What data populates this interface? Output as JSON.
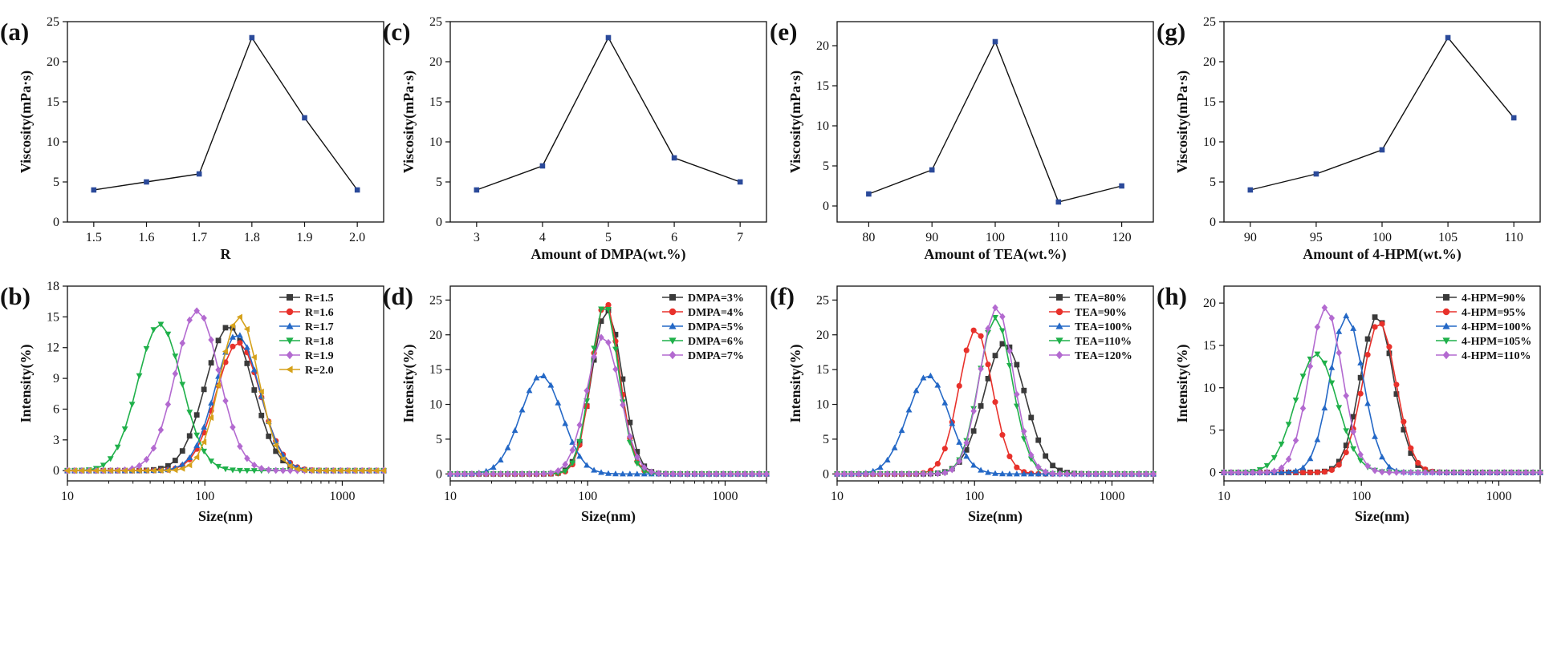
{
  "chart_data": [
    {
      "id": "a",
      "panel_label": "(a)",
      "type": "line",
      "xscale": "linear",
      "title": "",
      "xlabel": "R",
      "ylabel": "Viscosity(mPa·s)",
      "xlim": [
        1.45,
        2.05
      ],
      "ylim": [
        0,
        25
      ],
      "xticks": [
        1.5,
        1.6,
        1.7,
        1.8,
        1.9,
        2.0
      ],
      "xtick_labels": [
        "1.5",
        "1.6",
        "1.7",
        "1.8",
        "1.9",
        "2.0"
      ],
      "yticks": [
        0,
        5,
        10,
        15,
        20,
        25
      ],
      "ytick_labels": [
        "0",
        "5",
        "10",
        "15",
        "20",
        "25"
      ],
      "legend_position": "none",
      "series": [
        {
          "name": "Viscosity",
          "color": "#2b4a9a",
          "marker": "square",
          "x": [
            1.5,
            1.6,
            1.7,
            1.8,
            1.9,
            2.0
          ],
          "y": [
            4,
            5,
            6,
            23,
            13,
            4
          ]
        }
      ]
    },
    {
      "id": "c",
      "panel_label": "(c)",
      "type": "line",
      "xscale": "linear",
      "title": "",
      "xlabel": "Amount of DMPA(wt.%)",
      "ylabel": "Viscosity(mPa·s)",
      "xlim": [
        2.6,
        7.4
      ],
      "ylim": [
        0,
        25
      ],
      "xticks": [
        3,
        4,
        5,
        6,
        7
      ],
      "xtick_labels": [
        "3",
        "4",
        "5",
        "6",
        "7"
      ],
      "yticks": [
        0,
        5,
        10,
        15,
        20,
        25
      ],
      "ytick_labels": [
        "0",
        "5",
        "10",
        "15",
        "20",
        "25"
      ],
      "legend_position": "none",
      "series": [
        {
          "name": "Viscosity",
          "color": "#2b4a9a",
          "marker": "square",
          "x": [
            3,
            4,
            5,
            6,
            7
          ],
          "y": [
            4,
            7,
            23,
            8,
            5
          ]
        }
      ]
    },
    {
      "id": "e",
      "panel_label": "(e)",
      "type": "line",
      "xscale": "linear",
      "title": "",
      "xlabel": "Amount of TEA(wt.%)",
      "ylabel": "Viscosity(mPa·s)",
      "xlim": [
        75,
        125
      ],
      "ylim": [
        -2,
        23
      ],
      "xticks": [
        80,
        90,
        100,
        110,
        120
      ],
      "xtick_labels": [
        "80",
        "90",
        "100",
        "110",
        "120"
      ],
      "yticks": [
        0,
        5,
        10,
        15,
        20
      ],
      "ytick_labels": [
        "0",
        "5",
        "10",
        "15",
        "20"
      ],
      "legend_position": "none",
      "series": [
        {
          "name": "Viscosity",
          "color": "#2b4a9a",
          "marker": "square",
          "x": [
            80,
            90,
            100,
            110,
            120
          ],
          "y": [
            1.5,
            4.5,
            20.5,
            0.5,
            2.5
          ]
        }
      ]
    },
    {
      "id": "g",
      "panel_label": "(g)",
      "type": "line",
      "xscale": "linear",
      "title": "",
      "xlabel": "Amount of 4-HPM(wt.%)",
      "ylabel": "Viscosity(mPa·s)",
      "xlim": [
        88,
        112
      ],
      "ylim": [
        0,
        25
      ],
      "xticks": [
        90,
        95,
        100,
        105,
        110
      ],
      "xtick_labels": [
        "90",
        "95",
        "100",
        "105",
        "110"
      ],
      "yticks": [
        0,
        5,
        10,
        15,
        20,
        25
      ],
      "ytick_labels": [
        "0",
        "5",
        "10",
        "15",
        "20",
        "25"
      ],
      "legend_position": "none",
      "series": [
        {
          "name": "Viscosity",
          "color": "#2b4a9a",
          "marker": "square",
          "x": [
            90,
            95,
            100,
            105,
            110
          ],
          "y": [
            4,
            6,
            9,
            23,
            13
          ]
        }
      ]
    },
    {
      "id": "b",
      "panel_label": "(b)",
      "type": "line",
      "xscale": "log",
      "title": "",
      "xlabel": "Size(nm)",
      "ylabel": "Intensity(%)",
      "xlim": [
        10,
        2000
      ],
      "ylim": [
        -1,
        18
      ],
      "xticks": [
        10,
        100,
        1000
      ],
      "xtick_labels": [
        "10",
        "100",
        "1000"
      ],
      "yticks": [
        0,
        3,
        6,
        9,
        12,
        15,
        18
      ],
      "ytick_labels": [
        "0",
        "3",
        "6",
        "9",
        "12",
        "15",
        "18"
      ],
      "legend_position": "top-right",
      "series": [
        {
          "name": "R=1.5",
          "color": "#3a3a3a",
          "marker": "square",
          "peak": 14.1,
          "center": 150,
          "width": 0.17
        },
        {
          "name": "R=1.6",
          "color": "#e8312b",
          "marker": "circle",
          "peak": 12.5,
          "center": 175,
          "width": 0.16
        },
        {
          "name": "R=1.7",
          "color": "#2468c6",
          "marker": "triangle-up",
          "peak": 13.3,
          "center": 172,
          "width": 0.16
        },
        {
          "name": "R=1.8",
          "color": "#1fb04a",
          "marker": "triangle-down",
          "peak": 14.3,
          "center": 47,
          "width": 0.16
        },
        {
          "name": "R=1.9",
          "color": "#b36ad0",
          "marker": "diamond",
          "peak": 15.6,
          "center": 88,
          "width": 0.16
        },
        {
          "name": "R=2.0",
          "color": "#d6a21c",
          "marker": "triangle-left",
          "peak": 15.0,
          "center": 178,
          "width": 0.14
        }
      ]
    },
    {
      "id": "d",
      "panel_label": "(d)",
      "type": "line",
      "xscale": "log",
      "title": "",
      "xlabel": "Size(nm)",
      "ylabel": "Intensity(%)",
      "xlim": [
        10,
        2000
      ],
      "ylim": [
        -1,
        27
      ],
      "xticks": [
        10,
        100,
        1000
      ],
      "xtick_labels": [
        "10",
        "100",
        "1000"
      ],
      "yticks": [
        0,
        5,
        10,
        15,
        20,
        25
      ],
      "ytick_labels": [
        "0",
        "5",
        "10",
        "15",
        "20",
        "25"
      ],
      "legend_position": "top-right",
      "series": [
        {
          "name": "DMPA=3%",
          "color": "#3a3a3a",
          "marker": "square",
          "peak": 23.6,
          "center": 138,
          "width": 0.11
        },
        {
          "name": "DMPA=4%",
          "color": "#e8312b",
          "marker": "circle",
          "peak": 24.8,
          "center": 135,
          "width": 0.1
        },
        {
          "name": "DMPA=5%",
          "color": "#2468c6",
          "marker": "triangle-up",
          "peak": 14.2,
          "center": 46,
          "width": 0.15
        },
        {
          "name": "DMPA=6%",
          "color": "#1fb04a",
          "marker": "triangle-down",
          "peak": 24.5,
          "center": 133,
          "width": 0.1
        },
        {
          "name": "DMPA=7%",
          "color": "#b36ad0",
          "marker": "diamond",
          "peak": 19.8,
          "center": 130,
          "width": 0.12
        }
      ]
    },
    {
      "id": "f",
      "panel_label": "(f)",
      "type": "line",
      "xscale": "log",
      "title": "",
      "xlabel": "Size(nm)",
      "ylabel": "Intensity(%)",
      "xlim": [
        10,
        2000
      ],
      "ylim": [
        -1,
        27
      ],
      "xticks": [
        10,
        100,
        1000
      ],
      "xtick_labels": [
        "10",
        "100",
        "1000"
      ],
      "yticks": [
        0,
        5,
        10,
        15,
        20,
        25
      ],
      "ytick_labels": [
        "0",
        "5",
        "10",
        "15",
        "20",
        "25"
      ],
      "legend_position": "top-right",
      "series": [
        {
          "name": "TEA=80%",
          "color": "#3a3a3a",
          "marker": "square",
          "peak": 18.8,
          "center": 165,
          "width": 0.15
        },
        {
          "name": "TEA=90%",
          "color": "#e8312b",
          "marker": "circle",
          "peak": 20.8,
          "center": 102,
          "width": 0.12
        },
        {
          "name": "TEA=100%",
          "color": "#2468c6",
          "marker": "triangle-up",
          "peak": 14.2,
          "center": 46,
          "width": 0.15
        },
        {
          "name": "TEA=110%",
          "color": "#1fb04a",
          "marker": "triangle-down",
          "peak": 22.5,
          "center": 142,
          "width": 0.12
        },
        {
          "name": "TEA=120%",
          "color": "#b36ad0",
          "marker": "diamond",
          "peak": 24.0,
          "center": 145,
          "width": 0.12
        }
      ]
    },
    {
      "id": "h",
      "panel_label": "(h)",
      "type": "line",
      "xscale": "log",
      "title": "",
      "xlabel": "Size(nm)",
      "ylabel": "Intensity(%)",
      "xlim": [
        10,
        2000
      ],
      "ylim": [
        -1,
        22
      ],
      "xticks": [
        10,
        100,
        1000
      ],
      "xtick_labels": [
        "10",
        "100",
        "1000"
      ],
      "yticks": [
        0,
        5,
        10,
        15,
        20
      ],
      "ytick_labels": [
        "0",
        "5",
        "10",
        "15",
        "20"
      ],
      "legend_position": "top-right",
      "series": [
        {
          "name": "4-HPM=90%",
          "color": "#3a3a3a",
          "marker": "square",
          "peak": 18.5,
          "center": 130,
          "width": 0.12
        },
        {
          "name": "4-HPM=95%",
          "color": "#e8312b",
          "marker": "circle",
          "peak": 17.8,
          "center": 135,
          "width": 0.12
        },
        {
          "name": "4-HPM=100%",
          "color": "#2468c6",
          "marker": "triangle-up",
          "peak": 18.5,
          "center": 78,
          "width": 0.12
        },
        {
          "name": "4-HPM=105%",
          "color": "#1fb04a",
          "marker": "triangle-down",
          "peak": 14.0,
          "center": 47,
          "width": 0.15
        },
        {
          "name": "4-HPM=110%",
          "color": "#b36ad0",
          "marker": "diamond",
          "peak": 19.5,
          "center": 55,
          "width": 0.12
        }
      ]
    }
  ]
}
